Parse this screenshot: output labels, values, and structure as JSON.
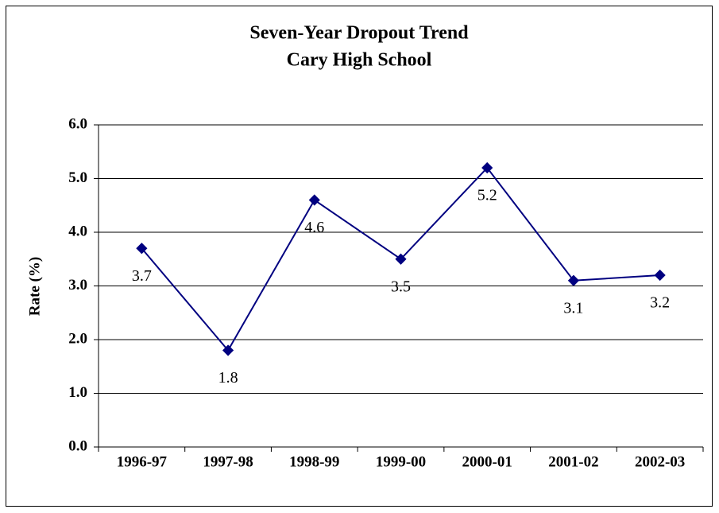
{
  "chart_data": {
    "type": "line",
    "title": "Seven-Year Dropout Trend",
    "subtitle": "Cary High School",
    "y_label": "Rate (%)",
    "categories": [
      "1996-97",
      "1997-98",
      "1998-99",
      "1999-00",
      "2000-01",
      "2001-02",
      "2002-03"
    ],
    "values": [
      3.7,
      1.8,
      4.6,
      3.5,
      5.2,
      3.1,
      3.2
    ],
    "color": "#000080",
    "ylim": [
      0,
      6
    ],
    "yticks": [
      {
        "value": 0,
        "label": "0.0"
      },
      {
        "value": 1,
        "label": "1.0"
      },
      {
        "value": 2,
        "label": "2.0"
      },
      {
        "value": 3,
        "label": "3.0"
      },
      {
        "value": 4,
        "label": "4.0"
      },
      {
        "value": 5,
        "label": "5.0"
      },
      {
        "value": 6,
        "label": "6.0"
      }
    ],
    "grid": true
  }
}
